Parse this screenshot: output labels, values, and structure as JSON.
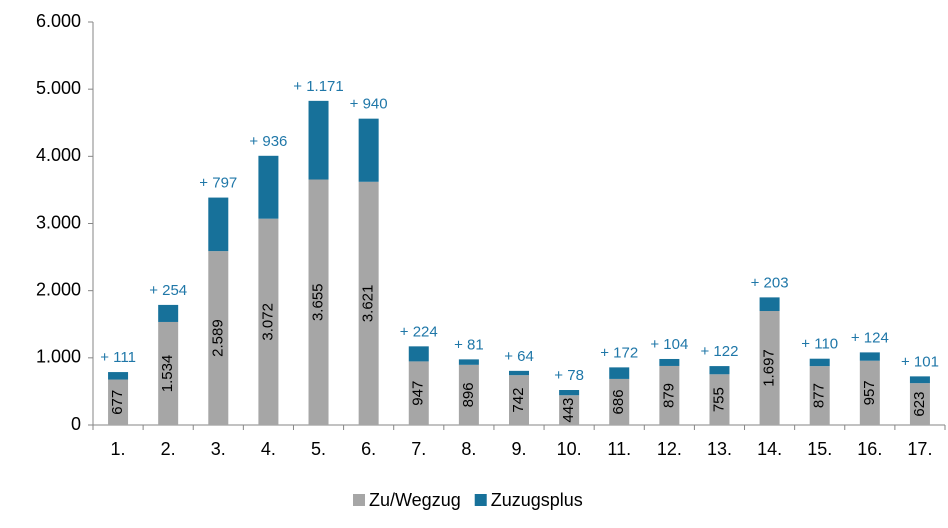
{
  "chart_data": {
    "type": "stacked_bar",
    "categories": [
      "1.",
      "2.",
      "3.",
      "4.",
      "5.",
      "6.",
      "7.",
      "8.",
      "9.",
      "10.",
      "11.",
      "12.",
      "13.",
      "14.",
      "15.",
      "16.",
      "17."
    ],
    "series": [
      {
        "name": "Zu/Wegzug",
        "color": "#a6a6a6",
        "values": [
          677,
          1534,
          2589,
          3072,
          3655,
          3621,
          947,
          896,
          742,
          443,
          686,
          879,
          755,
          1697,
          877,
          957,
          623
        ],
        "value_labels": [
          "677",
          "1.534",
          "2.589",
          "3.072",
          "3.655",
          "3.621",
          "947",
          "896",
          "742",
          "443",
          "686",
          "879",
          "755",
          "1.697",
          "877",
          "957",
          "623"
        ]
      },
      {
        "name": "Zuzugsplus",
        "color": "#17719a",
        "values": [
          111,
          254,
          797,
          936,
          1171,
          940,
          224,
          81,
          64,
          78,
          172,
          104,
          122,
          203,
          110,
          124,
          101
        ],
        "value_labels": [
          "+ 111",
          "+ 254",
          "+ 797",
          "+ 936",
          "+ 1.171",
          "+ 940",
          "+ 224",
          "+ 81",
          "+ 64",
          "+ 78",
          "+ 172",
          "+ 104",
          "+ 122",
          "+ 203",
          "+ 110",
          "+ 124",
          "+ 101"
        ]
      }
    ],
    "ylim": [
      0,
      6000
    ],
    "yticks": [
      0,
      {
        "value": 1000,
        "label": "1.000"
      },
      {
        "value": 2000,
        "label": "2.000"
      },
      {
        "value": 3000,
        "label": "3.000"
      },
      {
        "value": 4000,
        "label": "4.000"
      },
      {
        "value": 5000,
        "label": "5.000"
      },
      {
        "value": 6000,
        "label": "6.000"
      }
    ],
    "legend": "bottom"
  }
}
